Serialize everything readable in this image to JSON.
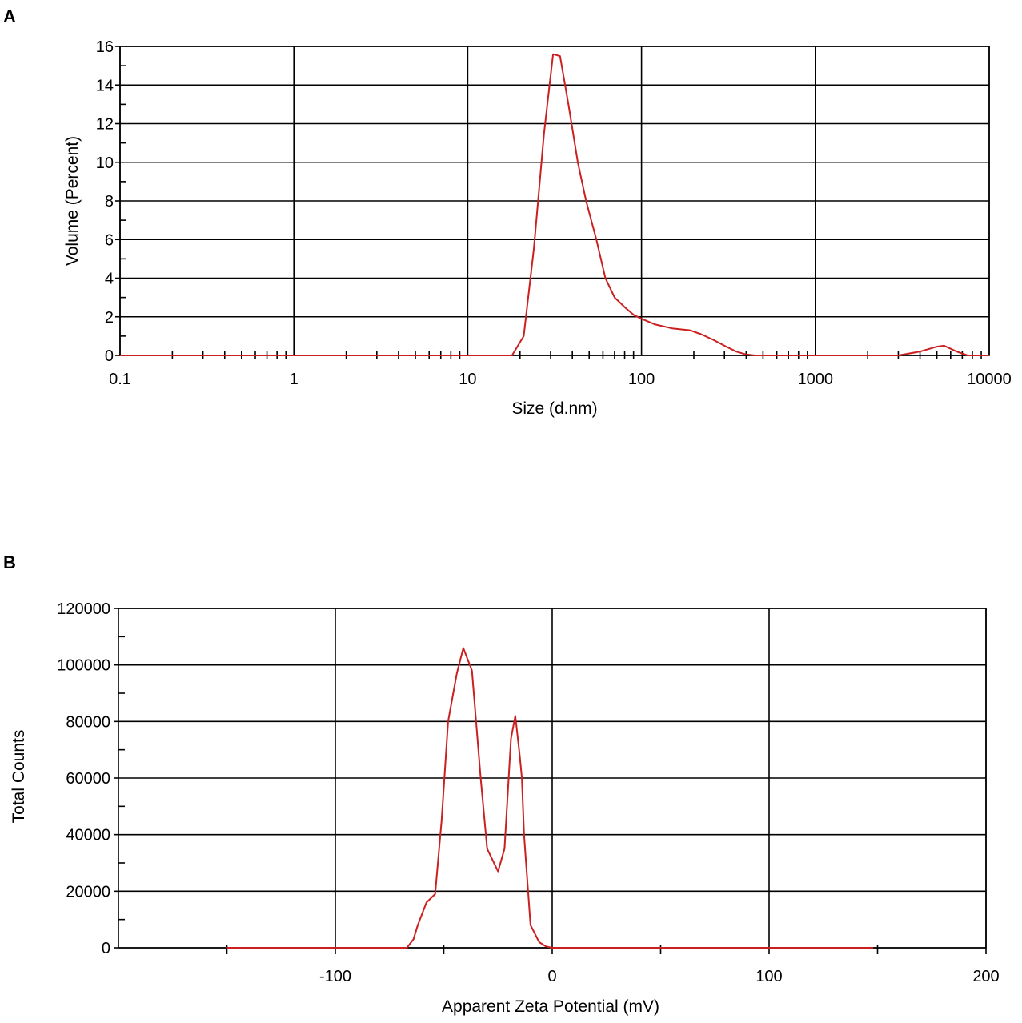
{
  "colors": {
    "series": "#cc1f1f",
    "axis": "#000000",
    "background": "#ffffff"
  },
  "chart_data": [
    {
      "panel": "A",
      "type": "line",
      "xlabel": "Size (d.nm)",
      "ylabel": "Volume (Percent)",
      "xscale": "log",
      "xlim": [
        0.1,
        10000
      ],
      "ylim": [
        0,
        16
      ],
      "grid": true,
      "x_ticks": [
        0.1,
        1,
        10,
        100,
        1000,
        10000
      ],
      "x_tick_labels": [
        "0.1",
        "1",
        "10",
        "100",
        "1000",
        "10000"
      ],
      "y_ticks": [
        0,
        2,
        4,
        6,
        8,
        10,
        12,
        14,
        16
      ],
      "y_tick_labels": [
        "0",
        "2",
        "4",
        "6",
        "8",
        "10",
        "12",
        "14",
        "16"
      ],
      "series": [
        {
          "x": [
            0.1,
            1,
            10,
            15,
            18,
            21,
            24,
            27.5,
            31,
            34,
            38,
            43,
            48,
            55,
            62,
            70,
            80,
            90,
            100,
            120,
            150,
            190,
            220,
            260,
            300,
            350,
            400,
            450,
            500,
            1000,
            3000,
            4000,
            5000,
            5500,
            6500,
            7500,
            10000
          ],
          "y": [
            0,
            0,
            0,
            0,
            0,
            1,
            5.5,
            11.5,
            15.6,
            15.5,
            13,
            10,
            8,
            6,
            4,
            3,
            2.5,
            2.1,
            1.9,
            1.6,
            1.4,
            1.3,
            1.1,
            0.8,
            0.5,
            0.2,
            0.05,
            0,
            0,
            0,
            0,
            0.2,
            0.45,
            0.5,
            0.2,
            0,
            0
          ]
        }
      ]
    },
    {
      "panel": "B",
      "type": "line",
      "xlabel": "Apparent Zeta Potential (mV)",
      "ylabel": "Total Counts",
      "xlim": [
        -200,
        200
      ],
      "ylim": [
        0,
        120000
      ],
      "grid": true,
      "x_ticks": [
        -100,
        0,
        100,
        200
      ],
      "x_tick_labels": [
        "-100",
        "0",
        "100",
        "200"
      ],
      "y_ticks": [
        0,
        20000,
        40000,
        60000,
        80000,
        100000,
        120000
      ],
      "y_tick_labels": [
        "0",
        "20000",
        "40000",
        "60000",
        "80000",
        "100000",
        "120000"
      ],
      "series": [
        {
          "x": [
            -150,
            -100,
            -67,
            -64,
            -62,
            -58,
            -54,
            -51,
            -48,
            -44,
            -41,
            -37,
            -33,
            -30,
            -25,
            -22,
            -19,
            -17,
            -15,
            -14,
            -13,
            -10,
            -6,
            -3,
            0,
            50,
            100,
            148
          ],
          "y": [
            0,
            0,
            0,
            3000,
            8000,
            16000,
            19000,
            45000,
            80000,
            97000,
            106000,
            98000,
            60000,
            35000,
            27000,
            35000,
            74000,
            82000,
            68000,
            60000,
            40000,
            8000,
            2000,
            500,
            0,
            0,
            0,
            0
          ]
        }
      ]
    }
  ]
}
